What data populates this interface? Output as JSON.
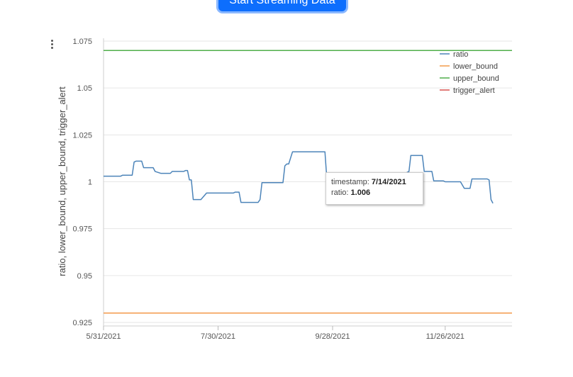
{
  "toolbar": {
    "stream_button_label": "Start Streaming Data"
  },
  "tooltip": {
    "timestamp_label": "timestamp:",
    "timestamp_value": "7/14/2021",
    "ratio_label": "ratio:",
    "ratio_value": "1.006"
  },
  "chart_data": {
    "type": "line",
    "title": "",
    "xlabel": "",
    "ylabel": "ratio, lower_bound, upper_bound, trigger_alert",
    "x_ticks": [
      "5/31/2021",
      "7/30/2021",
      "9/28/2021",
      "11/26/2021"
    ],
    "xlim": [
      "5/31/2021",
      "12/31/2021"
    ],
    "y_ticks": [
      "0.925",
      "0.95",
      "0.975",
      "1",
      "1.025",
      "1.05",
      "1.075"
    ],
    "ylim": [
      0.925,
      1.075
    ],
    "grid": true,
    "legend_position": "top-right",
    "colors": {
      "ratio": "#4c84b9",
      "lower_bound": "#f39a4a",
      "upper_bound": "#4fae4a",
      "trigger_alert": "#d9534f"
    },
    "series": [
      {
        "name": "ratio",
        "points": [
          [
            "5/31/2021",
            1.003
          ],
          [
            "6/9/2021",
            1.003
          ],
          [
            "6/10/2021",
            1.0035
          ],
          [
            "6/15/2021",
            1.0035
          ],
          [
            "6/16/2021",
            1.0105
          ],
          [
            "6/17/2021",
            1.011
          ],
          [
            "6/20/2021",
            1.011
          ],
          [
            "6/21/2021",
            1.0075
          ],
          [
            "6/26/2021",
            1.0075
          ],
          [
            "6/27/2021",
            1.0055
          ],
          [
            "6/30/2021",
            1.0045
          ],
          [
            "7/5/2021",
            1.0045
          ],
          [
            "7/6/2021",
            1.0055
          ],
          [
            "7/12/2021",
            1.0055
          ],
          [
            "7/13/2021",
            1.006
          ],
          [
            "7/14/2021",
            1.006
          ],
          [
            "7/15/2021",
            1.001
          ],
          [
            "7/16/2021",
            1.001
          ],
          [
            "7/17/2021",
            0.9905
          ],
          [
            "7/21/2021",
            0.9905
          ],
          [
            "7/24/2021",
            0.994
          ],
          [
            "8/7/2021",
            0.994
          ],
          [
            "8/8/2021",
            0.9945
          ],
          [
            "8/10/2021",
            0.9945
          ],
          [
            "8/11/2021",
            0.989
          ],
          [
            "8/20/2021",
            0.989
          ],
          [
            "8/21/2021",
            0.9905
          ],
          [
            "8/22/2021",
            0.9995
          ],
          [
            "9/2/2021",
            0.9995
          ],
          [
            "9/3/2021",
            1.0085
          ],
          [
            "9/4/2021",
            1.0095
          ],
          [
            "9/5/2021",
            1.0095
          ],
          [
            "9/7/2021",
            1.016
          ],
          [
            "9/24/2021",
            1.016
          ],
          [
            "9/25/2021",
            1.0015
          ],
          [
            "9/30/2021",
            1.0015
          ],
          [
            "10/10/2021",
            1.002
          ],
          [
            "10/25/2021",
            1.003
          ],
          [
            "11/4/2021",
            1.003
          ],
          [
            "11/6/2021",
            1.005
          ],
          [
            "11/7/2021",
            1.0055
          ],
          [
            "11/8/2021",
            1.014
          ],
          [
            "11/14/2021",
            1.014
          ],
          [
            "11/15/2021",
            1.0055
          ],
          [
            "11/19/2021",
            1.0055
          ],
          [
            "11/20/2021",
            1.0005
          ],
          [
            "11/25/2021",
            1.0005
          ],
          [
            "11/26/2021",
            1.0
          ],
          [
            "12/4/2021",
            1.0
          ],
          [
            "12/6/2021",
            0.9965
          ],
          [
            "12/9/2021",
            0.9965
          ],
          [
            "12/10/2021",
            1.0015
          ],
          [
            "12/18/2021",
            1.0015
          ],
          [
            "12/19/2021",
            1.001
          ],
          [
            "12/20/2021",
            0.9905
          ],
          [
            "12/21/2021",
            0.9885
          ]
        ]
      },
      {
        "name": "lower_bound",
        "points": [
          [
            "5/31/2021",
            0.93
          ],
          [
            "12/31/2021",
            0.93
          ]
        ]
      },
      {
        "name": "upper_bound",
        "points": [
          [
            "5/31/2021",
            1.07
          ],
          [
            "12/31/2021",
            1.07
          ]
        ]
      },
      {
        "name": "trigger_alert",
        "points": []
      }
    ]
  }
}
